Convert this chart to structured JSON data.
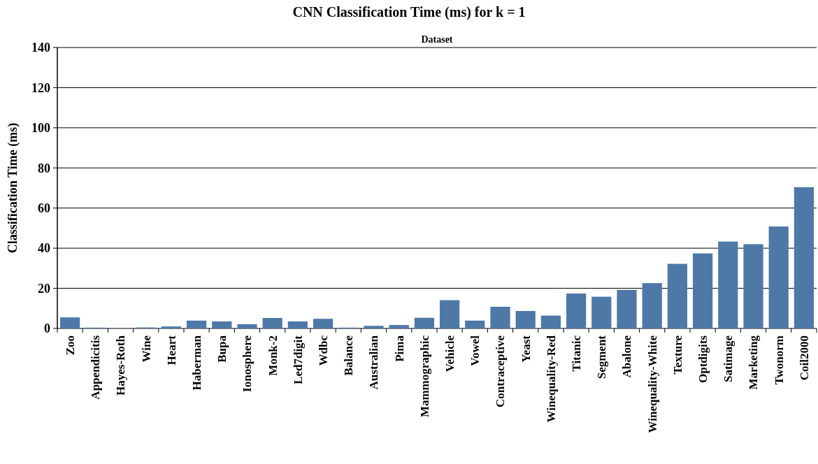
{
  "chart_data": {
    "type": "bar",
    "title": "CNN Classification Time (ms) for k = 1",
    "xlabel": "Dataset",
    "ylabel": "Classification Time (ms)",
    "categories": [
      "Zoo",
      "Appendicitis",
      "Hayes-Roth",
      "Wine",
      "Heart",
      "Haberman",
      "Bupa",
      "Ionosphere",
      "Monk-2",
      "Led7digit",
      "Wdbc",
      "Balance",
      "Australian",
      "Pima",
      "Mammographic",
      "Vehicle",
      "Vowel",
      "Contraceptive",
      "Yeast",
      "Winequality-Red",
      "Titanic",
      "Segment",
      "Abalone",
      "Winequality-White",
      "Texture",
      "Optdigits",
      "Satimage",
      "Marketing",
      "Twonorm",
      "Coil2000"
    ],
    "values": [
      5.5,
      0.4,
      null,
      0.5,
      1,
      3.9,
      3.5,
      2.1,
      5.2,
      3.5,
      4.8,
      0.4,
      1.3,
      1.7,
      5.3,
      14.1,
      3.9,
      10.8,
      8.7,
      6.4,
      17.4,
      15.8,
      19.2,
      22.6,
      32.2,
      37.4,
      43.3,
      42,
      50.8,
      70.4
    ],
    "color": "#4e79a7",
    "ylim": [
      0,
      140
    ],
    "yticks": [
      0,
      20,
      40,
      60,
      80,
      100,
      120,
      140
    ],
    "grid": "y"
  }
}
